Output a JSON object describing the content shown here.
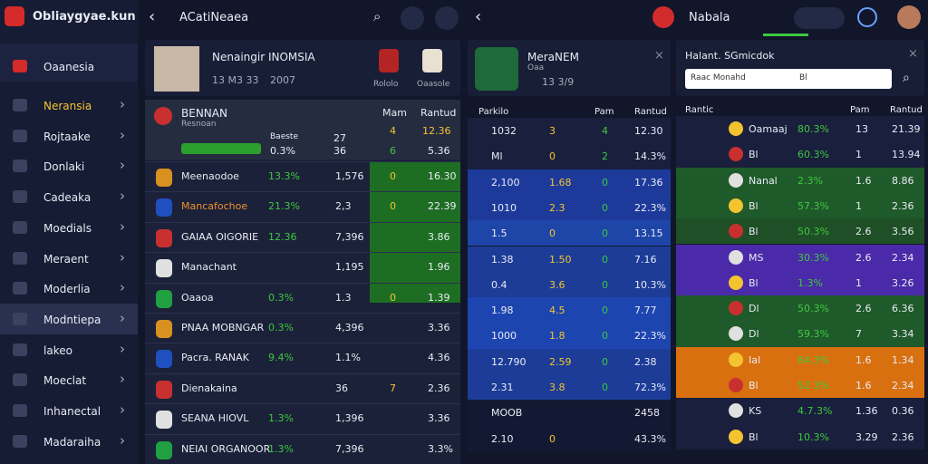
{
  "sidebar": {
    "logo": "Obliaygyae.kun",
    "items": [
      "Oaanesia",
      "Neransia",
      "Rojtaake",
      "Donlaki",
      "Cadeaka",
      "Moedials",
      "Meraent",
      "Moderlia",
      "Modntiepa",
      "lakeo",
      "Moeclat",
      "Inhanectal",
      "Madaraiha"
    ]
  },
  "topbar": {
    "title": "ACatiNeaea",
    "title2": "Nabala"
  },
  "col1": {
    "profile": {
      "name": "Nenaingir INOMSIA",
      "meta": "13 M3 33",
      "year": "2007",
      "badge1": "Rololo",
      "badge2": "Oaasole"
    },
    "head": {
      "name": "BENNAN",
      "sub": "Resnoan",
      "c1": "Baeste",
      "c3": "Mam",
      "c4": "Rantud",
      "v1": "27",
      "v2": "4",
      "v3": "12.36",
      "w1": "0.3%",
      "w2": "36",
      "w3": "6",
      "w4": "5.36"
    },
    "rows": [
      {
        "name": "Meenaodoe",
        "v": [
          "13.3%",
          "1,576",
          "0",
          "16.30"
        ]
      },
      {
        "name": "Mancafochoe",
        "v": [
          "21.3%",
          "2,3",
          "0",
          "22.39"
        ]
      },
      {
        "name": "GAIAA OIGORIE",
        "v": [
          "12.36",
          "7,396",
          "",
          "3.86"
        ]
      },
      {
        "name": "Manachant",
        "v": [
          "",
          "1,195",
          "",
          "1.96"
        ]
      },
      {
        "name": "Oaaoa",
        "v": [
          "0.3%",
          "1.3",
          "0",
          "1.39"
        ]
      },
      {
        "name": "PNAA MOBNGAR",
        "v": [
          "0.3%",
          "4,396",
          "",
          "3.36"
        ]
      },
      {
        "name": "Pacra. RANAK",
        "v": [
          "9.4%",
          "1.1%",
          "",
          "4.36"
        ]
      },
      {
        "name": "Dienakaina",
        "v": [
          "",
          "36",
          "7",
          "2.36"
        ]
      },
      {
        "name": "SEANA HIOVL",
        "v": [
          "1.3%",
          "1,396",
          "",
          "3.36"
        ]
      },
      {
        "name": "NEIAI ORGANOOR",
        "v": [
          "1.3%",
          "7,396",
          "",
          "3.3%"
        ]
      }
    ]
  },
  "col2": {
    "card": {
      "name": "MeraNEM",
      "sub": "Oaa",
      "meta": "13 3/9"
    },
    "header": [
      "Parkilo",
      "Pam",
      "Rantud"
    ],
    "rows": [
      {
        "color": "#1a1f3d",
        "v": [
          "1032",
          "3",
          "4",
          "12.30"
        ]
      },
      {
        "color": "#1a1f3d",
        "v": [
          "Ml",
          "0",
          "2",
          "14.3%"
        ]
      },
      {
        "color": "#1d3a9a",
        "v": [
          "2,100",
          "1.68",
          "0",
          "17.36"
        ]
      },
      {
        "color": "#1d3a9a",
        "v": [
          "1010",
          "2.3",
          "0",
          "22.3%"
        ]
      },
      {
        "color": "#1e45a8",
        "v": [
          "1.5",
          "0",
          "0",
          "13.15"
        ]
      },
      {
        "color": "#1c3c98",
        "v": [
          "1.38",
          "1.50",
          "0",
          "7.16"
        ]
      },
      {
        "color": "#1c3c98",
        "v": [
          "0.4",
          "3.6",
          "0",
          "10.3%"
        ]
      },
      {
        "color": "#1d45b0",
        "v": [
          "1.98",
          "4.5",
          "0",
          "7.77"
        ]
      },
      {
        "color": "#1d45b0",
        "v": [
          "1000",
          "1.8",
          "0",
          "22.3%"
        ]
      },
      {
        "color": "#1c3c98",
        "v": [
          "12.790",
          "2.59",
          "0",
          "2.38"
        ]
      },
      {
        "color": "#1c3c98",
        "v": [
          "2.31",
          "3.8",
          "0",
          "72.3%"
        ]
      },
      {
        "color": "#141933",
        "v": [
          "MOOB",
          "",
          "",
          "2458"
        ]
      },
      {
        "color": "#141933",
        "v": [
          "2.10",
          "0",
          "",
          "43.3%"
        ]
      }
    ]
  },
  "col3": {
    "card": {
      "title": "Halant. SGmicdok",
      "search": "Raac Monahd",
      "sub": "Bl"
    },
    "header": [
      "Rantic",
      "Pam",
      "Rantud"
    ],
    "rows": [
      {
        "color": "#1a1f3d",
        "v": [
          "Oamaaj",
          "80.3%",
          "13",
          "21.39"
        ]
      },
      {
        "color": "#1a1f3d",
        "v": [
          "Bl",
          "60.3%",
          "1",
          "13.94"
        ]
      },
      {
        "color": "#1f5a2a",
        "v": [
          "Nanal",
          "2.3%",
          "1.6",
          "8.86"
        ]
      },
      {
        "color": "#1f5a2a",
        "v": [
          "Bl",
          "57.3%",
          "1",
          "2.36"
        ]
      },
      {
        "color": "#1f4f26",
        "v": [
          "Bl",
          "50.3%",
          "2.6",
          "3.56"
        ]
      },
      {
        "color": "#4a2aa8",
        "v": [
          "MS",
          "30.3%",
          "2.6",
          "2.34"
        ]
      },
      {
        "color": "#4a2aa8",
        "v": [
          "Bl",
          "1.3%",
          "1",
          "3.26"
        ]
      },
      {
        "color": "#1f5a2a",
        "v": [
          "Dl",
          "50.3%",
          "2.6",
          "6.36"
        ]
      },
      {
        "color": "#1f5a2a",
        "v": [
          "Dl",
          "59.3%",
          "7",
          "3.34"
        ]
      },
      {
        "color": "#d9700f",
        "v": [
          "Ial",
          "84.3%",
          "1.6",
          "1.34"
        ]
      },
      {
        "color": "#d9700f",
        "v": [
          "Bl",
          "52.3%",
          "1.6",
          "2.34"
        ]
      },
      {
        "color": "#1a1f3d",
        "v": [
          "KS",
          "4.7.3%",
          "1.36",
          "0.36"
        ]
      },
      {
        "color": "#1a1f3d",
        "v": [
          "Bl",
          "10.3%",
          "3.29",
          "2.36"
        ]
      }
    ]
  }
}
